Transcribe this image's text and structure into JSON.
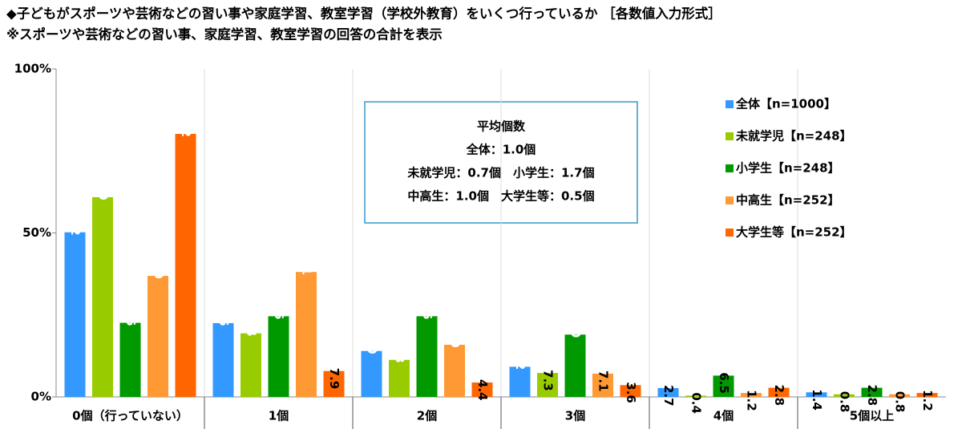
{
  "chart_data": {
    "type": "bar",
    "title": "◆子どもがスポーツや芸術などの習い事や家庭学習、教室学習（学校外教育）をいくつ行っているか ［各数値入力形式］",
    "subtitle": "※スポーツや芸術などの習い事、家庭学習、教室学習の回答の合計を表示",
    "categories": [
      "0個（行っていない）",
      "1個",
      "2個",
      "3個",
      "4個",
      "5個以上"
    ],
    "series": [
      {
        "name": "全体【n=1000】",
        "color": "#3399ff",
        "values": [
          50.2,
          22.5,
          14.0,
          9.2,
          2.7,
          1.4
        ],
        "value_labels": [
          "50.2",
          "22.5",
          "14.0",
          "9.2",
          "2.7",
          "1.4"
        ]
      },
      {
        "name": "未就学児【n=248】",
        "color": "#99cc00",
        "values": [
          60.9,
          19.4,
          11.3,
          7.3,
          0.4,
          0.8
        ],
        "value_labels": [
          "60.9",
          "19.4",
          "11.3",
          "7.3",
          "0.4",
          "0.8"
        ]
      },
      {
        "name": "小学生【n=248】",
        "color": "#009900",
        "values": [
          22.6,
          24.6,
          24.6,
          19.0,
          6.5,
          2.8
        ],
        "value_labels": [
          "22.6",
          "24.6",
          "24.6",
          "19.0",
          "6.5",
          "2.8"
        ]
      },
      {
        "name": "中高生【n=252】",
        "color": "#ff9933",
        "values": [
          36.9,
          38.1,
          15.9,
          7.1,
          1.2,
          0.8
        ],
        "value_labels": [
          "36.9",
          "38.1",
          "15.9",
          "7.1",
          "1.2",
          "0.8"
        ]
      },
      {
        "name": "大学生等【n=252】",
        "color": "#ff6600",
        "values": [
          80.2,
          7.9,
          4.4,
          3.6,
          2.8,
          1.2
        ],
        "value_labels": [
          "80.2",
          "7.9",
          "4.4",
          "3.6",
          "2.8",
          "1.2"
        ]
      }
    ],
    "ylim": [
      0,
      100
    ],
    "yticks": [
      {
        "value": 0,
        "label": "0%"
      },
      {
        "value": 50,
        "label": "50%"
      },
      {
        "value": 100,
        "label": "100%"
      }
    ],
    "legend": "upper right",
    "annotation": {
      "title": "平均個数",
      "lines": [
        "全体：1.0個",
        "未就学児：0.7個　小学生：1.7個",
        "中高生：1.0個　大学生等：0.5個"
      ]
    }
  }
}
